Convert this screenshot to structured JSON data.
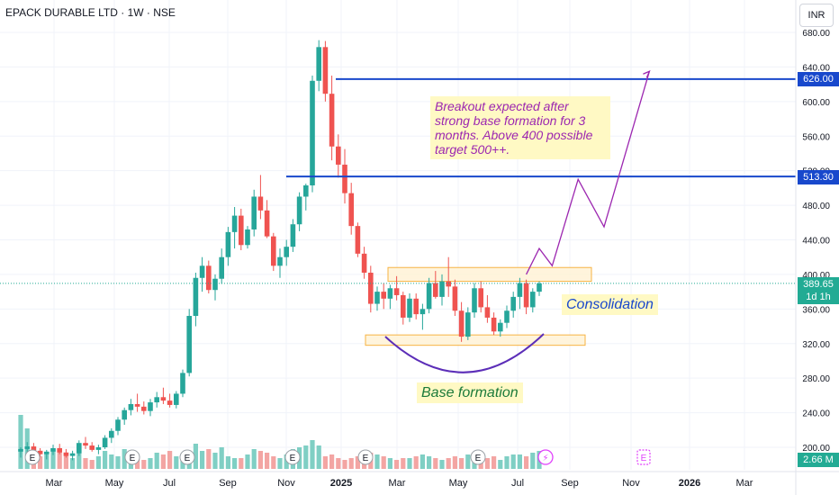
{
  "header": {
    "symbol_title": "EPACK DURABLE LTD · 1W · NSE",
    "currency": "INR"
  },
  "annotations": {
    "breakout_note": "Breakout expected after strong base formation for 3 months. Above 400 possible target 500++.",
    "consolidation": "Consolidation",
    "base_formation": "Base formation"
  },
  "price_badges": {
    "target_high": "626.00",
    "target_mid": "513.30",
    "last_price": "389.65",
    "last_interval": "1d 1h",
    "volume": "2.66 M"
  },
  "event_markers": {
    "earnings_letter": "E",
    "flash_symbol": "⚡"
  },
  "colors": {
    "up": "#26a69a",
    "down": "#ef5350",
    "level_line": "#1848cc",
    "projection": "#9c27b0",
    "base_arc": "#5c2eb8",
    "zone_fill": "#fff3d6",
    "zone_border": "#f6a623"
  },
  "chart_data": {
    "type": "candlestick",
    "title": "EPACK DURABLE LTD · 1W · NSE",
    "y_axis": {
      "range": [
        190,
        690
      ],
      "ticks": [
        200,
        240,
        280,
        320,
        360,
        400,
        440,
        480,
        520,
        560,
        600,
        640,
        680
      ],
      "tick_labels": [
        "200.00",
        "240.00",
        "280.00",
        "320.00",
        "360.00",
        "400.00",
        "440.00",
        "480.00",
        "520.00",
        "560.00",
        "600.00",
        "640.00",
        "680.00"
      ]
    },
    "x_axis": {
      "tick_labels": [
        "Mar",
        "May",
        "Jul",
        "Sep",
        "Nov",
        "2025",
        "Mar",
        "May",
        "Jul",
        "Sep",
        "Nov",
        "2026",
        "Mar"
      ]
    },
    "candles": [
      [
        195,
        200,
        188,
        198
      ],
      [
        198,
        206,
        194,
        201
      ],
      [
        201,
        205,
        193,
        196
      ],
      [
        196,
        199,
        189,
        192
      ],
      [
        192,
        197,
        186,
        195
      ],
      [
        195,
        203,
        191,
        199
      ],
      [
        199,
        204,
        192,
        194
      ],
      [
        194,
        198,
        188,
        190
      ],
      [
        190,
        196,
        185,
        193
      ],
      [
        193,
        208,
        190,
        205
      ],
      [
        205,
        212,
        198,
        202
      ],
      [
        202,
        206,
        195,
        197
      ],
      [
        197,
        203,
        192,
        200
      ],
      [
        200,
        214,
        198,
        211
      ],
      [
        211,
        222,
        205,
        219
      ],
      [
        219,
        235,
        214,
        232
      ],
      [
        232,
        246,
        226,
        243
      ],
      [
        243,
        256,
        237,
        250
      ],
      [
        250,
        262,
        241,
        247
      ],
      [
        247,
        253,
        238,
        242
      ],
      [
        242,
        256,
        236,
        252
      ],
      [
        252,
        264,
        246,
        258
      ],
      [
        258,
        269,
        250,
        254
      ],
      [
        254,
        262,
        246,
        249
      ],
      [
        249,
        265,
        245,
        262
      ],
      [
        262,
        290,
        258,
        286
      ],
      [
        286,
        360,
        282,
        352
      ],
      [
        352,
        402,
        340,
        396
      ],
      [
        396,
        420,
        380,
        410
      ],
      [
        410,
        416,
        378,
        382
      ],
      [
        382,
        400,
        370,
        395
      ],
      [
        395,
        430,
        389,
        420
      ],
      [
        420,
        455,
        410,
        449
      ],
      [
        449,
        478,
        430,
        468
      ],
      [
        468,
        476,
        428,
        434
      ],
      [
        434,
        456,
        430,
        452
      ],
      [
        452,
        498,
        444,
        490
      ],
      [
        490,
        515,
        464,
        474
      ],
      [
        474,
        486,
        442,
        444
      ],
      [
        444,
        448,
        404,
        410
      ],
      [
        410,
        430,
        396,
        420
      ],
      [
        420,
        440,
        410,
        432
      ],
      [
        432,
        464,
        426,
        458
      ],
      [
        458,
        495,
        450,
        490
      ],
      [
        490,
        505,
        474,
        503
      ],
      [
        503,
        630,
        495,
        624
      ],
      [
        624,
        671,
        612,
        663
      ],
      [
        663,
        670,
        600,
        609
      ],
      [
        609,
        630,
        532,
        548
      ],
      [
        548,
        562,
        512,
        527
      ],
      [
        527,
        545,
        482,
        494
      ],
      [
        494,
        506,
        446,
        456
      ],
      [
        456,
        460,
        420,
        424
      ],
      [
        424,
        432,
        395,
        402
      ],
      [
        402,
        410,
        356,
        366
      ],
      [
        366,
        386,
        358,
        380
      ],
      [
        380,
        390,
        360,
        372
      ],
      [
        372,
        388,
        360,
        384
      ],
      [
        384,
        398,
        370,
        376
      ],
      [
        376,
        380,
        342,
        350
      ],
      [
        350,
        378,
        345,
        372
      ],
      [
        372,
        378,
        348,
        354
      ],
      [
        354,
        366,
        336,
        360
      ],
      [
        360,
        396,
        355,
        390
      ],
      [
        390,
        404,
        372,
        374
      ],
      [
        374,
        400,
        364,
        392
      ],
      [
        392,
        420,
        374,
        386
      ],
      [
        386,
        394,
        352,
        358
      ],
      [
        358,
        368,
        322,
        328
      ],
      [
        328,
        362,
        324,
        356
      ],
      [
        356,
        390,
        350,
        384
      ],
      [
        384,
        392,
        356,
        362
      ],
      [
        362,
        376,
        344,
        350
      ],
      [
        350,
        356,
        330,
        334
      ],
      [
        334,
        348,
        328,
        344
      ],
      [
        344,
        364,
        338,
        358
      ],
      [
        358,
        380,
        350,
        374
      ],
      [
        374,
        396,
        360,
        390
      ],
      [
        390,
        394,
        354,
        362
      ],
      [
        362,
        384,
        356,
        380
      ],
      [
        380,
        392,
        375,
        389.65
      ]
    ],
    "volume": [
      60,
      45,
      22,
      14,
      18,
      22,
      20,
      15,
      12,
      18,
      12,
      10,
      14,
      20,
      16,
      14,
      22,
      12,
      14,
      10,
      12,
      18,
      16,
      20,
      14,
      12,
      16,
      28,
      20,
      22,
      18,
      24,
      14,
      12,
      12,
      16,
      22,
      20,
      18,
      14,
      12,
      16,
      22,
      24,
      26,
      32,
      26,
      14,
      16,
      12,
      10,
      12,
      14,
      16,
      18,
      16,
      14,
      12,
      10,
      12,
      12,
      14,
      16,
      14,
      12,
      10,
      12,
      14,
      12,
      16,
      14,
      18,
      12,
      14,
      10,
      14,
      16,
      16,
      14,
      18,
      20
    ],
    "levels": [
      626.0,
      513.3
    ],
    "consolidation_zone": [
      392,
      408
    ],
    "base_zone": [
      318,
      330
    ],
    "projection_path": [
      [
        78,
        400
      ],
      [
        80,
        430
      ],
      [
        82,
        410
      ],
      [
        86,
        510
      ],
      [
        90,
        455
      ],
      [
        97,
        635
      ]
    ],
    "last_price": 389.65,
    "last_volume": "2.66 M"
  }
}
